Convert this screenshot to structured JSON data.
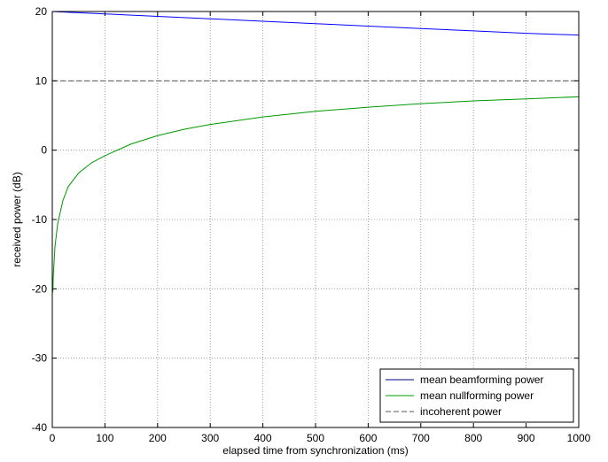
{
  "chart_data": {
    "type": "line",
    "title": "",
    "xlabel": "elapsed time from synchronization (ms)",
    "ylabel": "received power (dB)",
    "xlim": [
      0,
      1000
    ],
    "ylim": [
      -40,
      20
    ],
    "xticks": [
      0,
      100,
      200,
      300,
      400,
      500,
      600,
      700,
      800,
      900,
      1000
    ],
    "yticks": [
      -40,
      -30,
      -20,
      -10,
      0,
      10,
      20
    ],
    "grid": true,
    "legend_position": "bottom-right",
    "series": [
      {
        "name": "mean beamforming power",
        "color": "#0000ff",
        "style": "solid",
        "x": [
          0,
          100,
          200,
          300,
          400,
          500,
          600,
          700,
          800,
          900,
          1000
        ],
        "y": [
          20,
          19.65,
          19.3,
          18.95,
          18.6,
          18.25,
          17.9,
          17.55,
          17.2,
          16.85,
          16.6
        ]
      },
      {
        "name": "mean nullforming power",
        "color": "#009900",
        "style": "solid",
        "x": [
          1,
          2,
          5,
          10,
          20,
          30,
          50,
          75,
          100,
          150,
          200,
          250,
          300,
          400,
          500,
          600,
          700,
          800,
          900,
          1000
        ],
        "y": [
          -20.5,
          -18,
          -14,
          -10.7,
          -7.3,
          -5.3,
          -3.3,
          -1.8,
          -0.8,
          0.9,
          2.1,
          3.0,
          3.7,
          4.8,
          5.6,
          6.2,
          6.7,
          7.1,
          7.4,
          7.7
        ]
      },
      {
        "name": "incoherent power",
        "color": "#555555",
        "style": "dashed",
        "x": [
          0,
          1000
        ],
        "y": [
          10,
          10
        ]
      }
    ]
  }
}
